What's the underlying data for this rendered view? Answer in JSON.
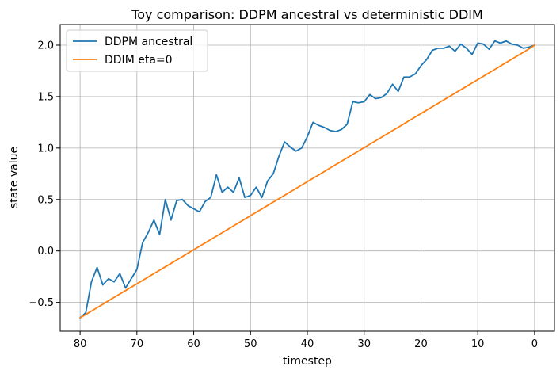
{
  "chart_data": {
    "type": "line",
    "title": "Toy comparison: DDPM ancestral vs deterministic DDIM",
    "xlabel": "timestep",
    "ylabel": "state value",
    "xlim": [
      83.5,
      -3.5
    ],
    "ylim": [
      -0.78,
      2.2
    ],
    "x_inverted": true,
    "grid": true,
    "legend_position": "top-left",
    "x_ticks": [
      80,
      70,
      60,
      50,
      40,
      30,
      20,
      10,
      0
    ],
    "x_tick_labels": [
      "80",
      "70",
      "60",
      "50",
      "40",
      "30",
      "20",
      "10",
      "0"
    ],
    "y_ticks": [
      -0.5,
      0.0,
      0.5,
      1.0,
      1.5,
      2.0
    ],
    "y_tick_labels": [
      "−0.5",
      "0.0",
      "0.5",
      "1.0",
      "1.5",
      "2.0"
    ],
    "x": [
      80,
      79,
      78,
      77,
      76,
      75,
      74,
      73,
      72,
      71,
      70,
      69,
      68,
      67,
      66,
      65,
      64,
      63,
      62,
      61,
      60,
      59,
      58,
      57,
      56,
      55,
      54,
      53,
      52,
      51,
      50,
      49,
      48,
      47,
      46,
      45,
      44,
      43,
      42,
      41,
      40,
      39,
      38,
      37,
      36,
      35,
      34,
      33,
      32,
      31,
      30,
      29,
      28,
      27,
      26,
      25,
      24,
      23,
      22,
      21,
      20,
      19,
      18,
      17,
      16,
      15,
      14,
      13,
      12,
      11,
      10,
      9,
      8,
      7,
      6,
      5,
      4,
      3,
      2,
      1,
      0
    ],
    "series": [
      {
        "name": "DDPM ancestral",
        "color": "#1f77b4",
        "values": [
          -0.65,
          -0.6,
          -0.3,
          -0.16,
          -0.33,
          -0.27,
          -0.3,
          -0.22,
          -0.36,
          -0.27,
          -0.18,
          0.08,
          0.18,
          0.3,
          0.16,
          0.5,
          0.3,
          0.49,
          0.5,
          0.44,
          0.41,
          0.38,
          0.48,
          0.52,
          0.74,
          0.57,
          0.62,
          0.57,
          0.71,
          0.52,
          0.54,
          0.62,
          0.52,
          0.68,
          0.75,
          0.92,
          1.06,
          1.01,
          0.97,
          1.0,
          1.11,
          1.25,
          1.22,
          1.2,
          1.17,
          1.16,
          1.18,
          1.23,
          1.45,
          1.44,
          1.45,
          1.52,
          1.48,
          1.49,
          1.53,
          1.62,
          1.55,
          1.69,
          1.69,
          1.72,
          1.8,
          1.86,
          1.95,
          1.97,
          1.97,
          1.99,
          1.94,
          2.01,
          1.97,
          1.91,
          2.02,
          2.01,
          1.96,
          2.04,
          2.02,
          2.04,
          2.01,
          2.0,
          1.97,
          1.98,
          2.0
        ]
      },
      {
        "name": "DDIM eta=0",
        "color": "#ff7f0e",
        "values": [
          -0.65,
          -0.617,
          -0.584,
          -0.551,
          -0.518,
          -0.484,
          -0.451,
          -0.418,
          -0.385,
          -0.352,
          -0.319,
          -0.286,
          -0.253,
          -0.22,
          -0.187,
          -0.154,
          -0.121,
          -0.088,
          -0.055,
          -0.021,
          0.012,
          0.045,
          0.078,
          0.111,
          0.144,
          0.177,
          0.21,
          0.243,
          0.276,
          0.309,
          0.343,
          0.376,
          0.409,
          0.442,
          0.475,
          0.508,
          0.541,
          0.574,
          0.607,
          0.64,
          0.673,
          0.706,
          0.739,
          0.772,
          0.806,
          0.839,
          0.872,
          0.905,
          0.938,
          0.971,
          1.004,
          1.037,
          1.07,
          1.103,
          1.136,
          1.169,
          1.202,
          1.235,
          1.269,
          1.302,
          1.335,
          1.368,
          1.401,
          1.434,
          1.467,
          1.5,
          1.533,
          1.566,
          1.599,
          1.632,
          1.665,
          1.698,
          1.731,
          1.764,
          1.798,
          1.831,
          1.864,
          1.897,
          1.93,
          1.963,
          2.0
        ]
      }
    ]
  }
}
